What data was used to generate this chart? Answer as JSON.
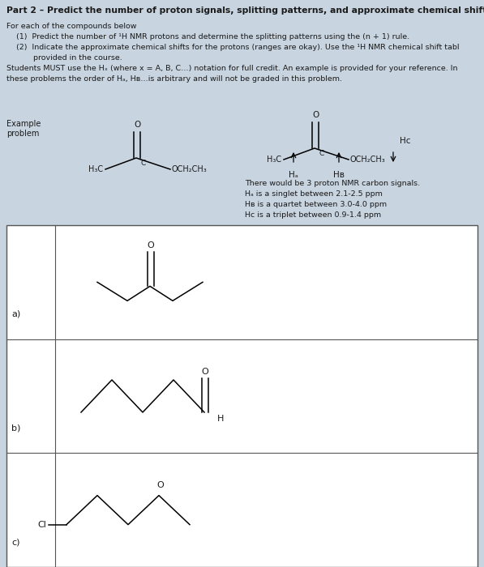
{
  "bg_color": "#c8d4e0",
  "title": "Part 2 – Predict the number of proton signals, splitting patterns, and approximate chemical shift.",
  "body_lines": [
    "For each of the compounds below",
    "    (1)  Predict the number of ¹H NMR protons and determine the splitting patterns using the (n + 1) rule.",
    "    (2)  Indicate the approximate chemical shifts for the protons (ranges are okay). Use the ¹H NMR chemical shift tabl",
    "           provided in the course.",
    "Students MUST use the Hₓ (where x = A, B, C…) notation for full credit. An example is provided for your reference. In",
    "these problems the order of Hₐ, Hʙ…is arbitrary and will not be graded in this problem."
  ],
  "example_text": [
    "There would be 3 proton NMR carbon signals.",
    "Hₐ is a singlet between 2.1-2.5 ppm",
    "Hʙ is a quartet between 3.0-4.0 ppm",
    "Hᴄ is a triplet between 0.9-1.4 ppm"
  ],
  "row_labels": [
    "a)",
    "b)",
    "c)"
  ]
}
